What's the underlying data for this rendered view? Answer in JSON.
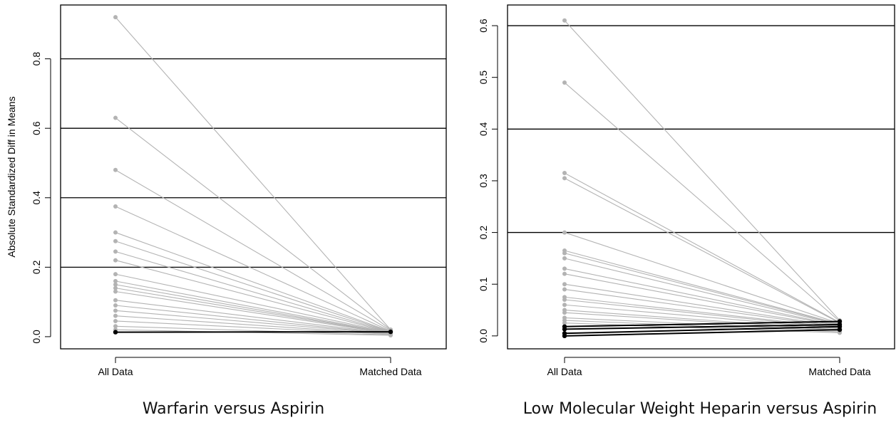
{
  "chart_data": [
    {
      "type": "line",
      "caption": "Warfarin versus Aspirin",
      "ylabel": "Absolute Standardized Diff in Means",
      "xlabel": "",
      "categories": [
        "All Data",
        "Matched Data"
      ],
      "ylim": [
        -0.035,
        0.955
      ],
      "yticks": [
        "0.0",
        "0.2",
        "0.4",
        "0.6",
        "0.8"
      ],
      "ytick_values": [
        0,
        0.2,
        0.4,
        0.6,
        0.8
      ],
      "hlines": [
        0.2,
        0.4,
        0.6,
        0.8
      ],
      "colors": {
        "unmatched": "#b3b3b3",
        "balanced": "#000000",
        "hline": "#000000"
      },
      "segments": [
        [
          0.92,
          0.02
        ],
        [
          0.63,
          0.02
        ],
        [
          0.48,
          0.018
        ],
        [
          0.375,
          0.016
        ],
        [
          0.3,
          0.015
        ],
        [
          0.275,
          0.014
        ],
        [
          0.245,
          0.013
        ],
        [
          0.22,
          0.012
        ],
        [
          0.18,
          0.012
        ],
        [
          0.16,
          0.011
        ],
        [
          0.15,
          0.01
        ],
        [
          0.14,
          0.01
        ],
        [
          0.13,
          0.009
        ],
        [
          0.105,
          0.009
        ],
        [
          0.09,
          0.008
        ],
        [
          0.075,
          0.008
        ],
        [
          0.06,
          0.007
        ],
        [
          0.045,
          0.007
        ],
        [
          0.03,
          0.005
        ],
        [
          0.02,
          0.004
        ]
      ],
      "balanced_segments": [
        [
          0.013,
          0.014
        ]
      ]
    },
    {
      "type": "line",
      "caption": "Low Molecular Weight Heparin versus Aspirin",
      "ylabel": "",
      "xlabel": "",
      "categories": [
        "All Data",
        "Matched Data"
      ],
      "ylim": [
        -0.025,
        0.64
      ],
      "yticks": [
        "0.0",
        "0.1",
        "0.2",
        "0.3",
        "0.4",
        "0.5",
        "0.6"
      ],
      "ytick_values": [
        0,
        0.1,
        0.2,
        0.3,
        0.4,
        0.5,
        0.6
      ],
      "hlines": [
        0.2,
        0.4,
        0.6
      ],
      "colors": {
        "unmatched": "#b3b3b3",
        "balanced": "#000000",
        "hline": "#000000"
      },
      "segments": [
        [
          0.61,
          0.03
        ],
        [
          0.49,
          0.028
        ],
        [
          0.315,
          0.026
        ],
        [
          0.305,
          0.025
        ],
        [
          0.2,
          0.024
        ],
        [
          0.165,
          0.023
        ],
        [
          0.16,
          0.022
        ],
        [
          0.15,
          0.021
        ],
        [
          0.13,
          0.02
        ],
        [
          0.12,
          0.019
        ],
        [
          0.1,
          0.018
        ],
        [
          0.09,
          0.017
        ],
        [
          0.075,
          0.016
        ],
        [
          0.07,
          0.015
        ],
        [
          0.06,
          0.014
        ],
        [
          0.05,
          0.012
        ],
        [
          0.045,
          0.011
        ],
        [
          0.035,
          0.01
        ],
        [
          0.03,
          0.008
        ],
        [
          0.025,
          0.006
        ]
      ],
      "balanced_segments": [
        [
          0.018,
          0.028
        ],
        [
          0.013,
          0.022
        ],
        [
          0.005,
          0.018
        ],
        [
          0.0,
          0.012
        ]
      ]
    }
  ]
}
